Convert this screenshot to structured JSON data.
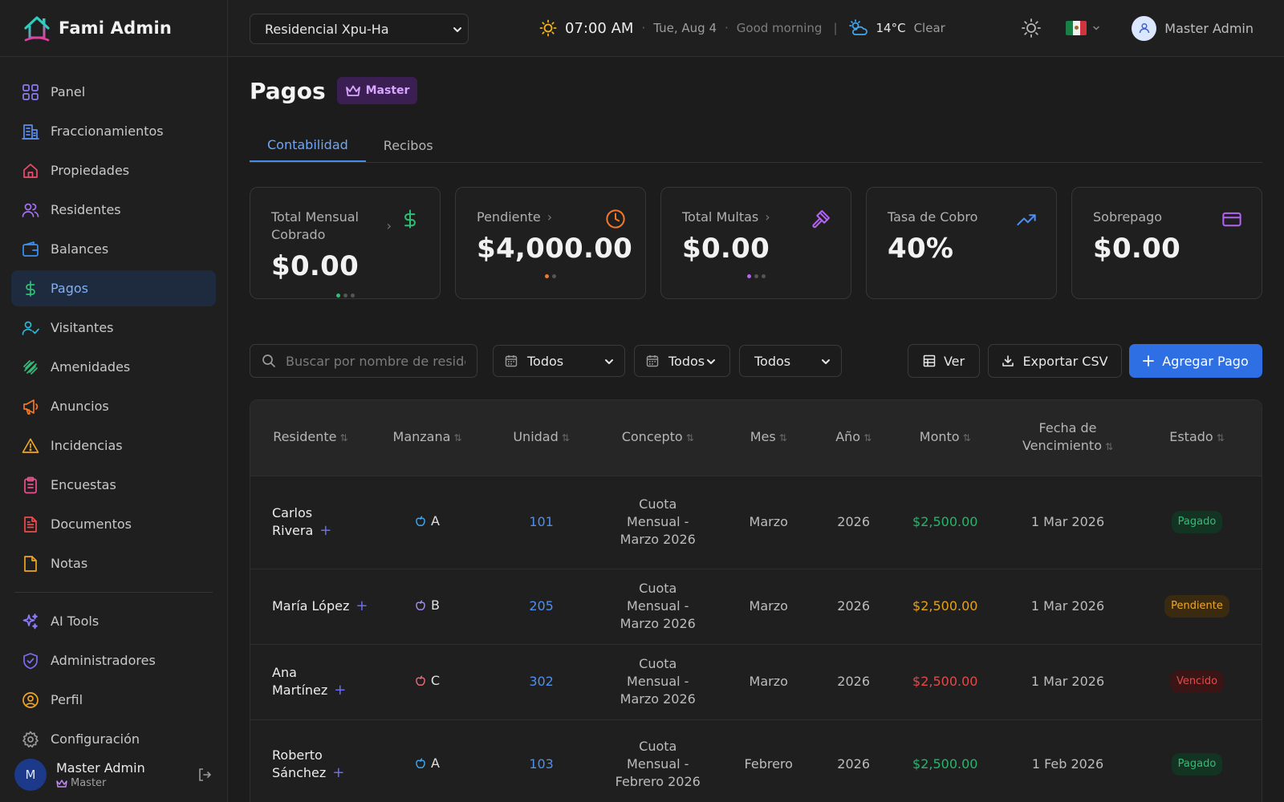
{
  "app": {
    "name": "Fami Admin"
  },
  "sidebar": {
    "items": [
      {
        "label": "Panel",
        "icon": "grid-icon",
        "color": "#8b7cf6"
      },
      {
        "label": "Fraccionamientos",
        "icon": "building-icon",
        "color": "#5b8ff0"
      },
      {
        "label": "Propiedades",
        "icon": "home-icon",
        "color": "#ef4b6b"
      },
      {
        "label": "Residentes",
        "icon": "users-icon",
        "color": "#a472f5"
      },
      {
        "label": "Balances",
        "icon": "wallet-icon",
        "color": "#3f8ef0"
      },
      {
        "label": "Pagos",
        "icon": "dollar-icon",
        "color": "#2fbf74",
        "active": true
      },
      {
        "label": "Visitantes",
        "icon": "user-check-icon",
        "color": "#28b6d8"
      },
      {
        "label": "Amenidades",
        "icon": "dumbbell-icon",
        "color": "#2fbf74"
      },
      {
        "label": "Anuncios",
        "icon": "megaphone-icon",
        "color": "#f07a2a"
      },
      {
        "label": "Incidencias",
        "icon": "warning-icon",
        "color": "#efa521"
      },
      {
        "label": "Encuestas",
        "icon": "clipboard-icon",
        "color": "#ec4f8f"
      },
      {
        "label": "Documentos",
        "icon": "document-icon",
        "color": "#ef4b4b"
      },
      {
        "label": "Notas",
        "icon": "note-icon",
        "color": "#efa521"
      }
    ],
    "bottom_items": [
      {
        "label": "AI Tools",
        "icon": "sparkles-icon",
        "color": "#8b7cf6"
      },
      {
        "label": "Administradores",
        "icon": "shield-icon",
        "color": "#7e6cf6"
      },
      {
        "label": "Perfil",
        "icon": "user-circle-icon",
        "color": "#efa521"
      },
      {
        "label": "Configuración",
        "icon": "gear-icon",
        "color": "#9a9a9a"
      }
    ],
    "user": {
      "initial": "M",
      "name": "Master Admin",
      "role": "Master"
    }
  },
  "topbar": {
    "property": "Residencial Xpu-Ha",
    "time": "07:00 AM",
    "date": "Tue, Aug 4",
    "greeting": "Good morning",
    "separator": "|",
    "temperature": "14°C",
    "weather": "Clear",
    "user_name": "Master Admin"
  },
  "page": {
    "title": "Pagos",
    "badge": "Master",
    "tabs": [
      {
        "label": "Contabilidad",
        "active": true
      },
      {
        "label": "Recibos",
        "active": false
      }
    ]
  },
  "cards": [
    {
      "label": "Total Mensual Cobrado",
      "value": "$0.00",
      "icon": "dollar-icon",
      "icon_color": "#2fbf74",
      "has_arrow": true,
      "dots": 3,
      "active_dot_color": "#2fbf74"
    },
    {
      "label": "Pendiente",
      "value": "$4,000.00",
      "icon": "clock-icon",
      "icon_color": "#f07a2a",
      "has_arrow": true,
      "dots": 2,
      "active_dot_color": "#f07a2a"
    },
    {
      "label": "Total Multas",
      "value": "$0.00",
      "icon": "gavel-icon",
      "icon_color": "#b463f5",
      "has_arrow": true,
      "dots": 3,
      "active_dot_color": "#b463f5"
    },
    {
      "label": "Tasa de Cobro",
      "value": "40%",
      "icon": "trending-up-icon",
      "icon_color": "#4d8ff0",
      "has_arrow": false,
      "dots": 0
    },
    {
      "label": "Sobrepago",
      "value": "$0.00",
      "icon": "credit-card-icon",
      "icon_color": "#b463f5",
      "has_arrow": false,
      "dots": 0
    }
  ],
  "toolbar": {
    "search_placeholder": "Buscar por nombre de residente",
    "filter_month": "Todos",
    "filter_year": "Todos",
    "filter_status": "Todos",
    "view_label": "Ver",
    "export_label": "Exportar CSV",
    "add_label": "Agregar Pago"
  },
  "table": {
    "columns": [
      "Residente",
      "Manzana",
      "Unidad",
      "Concepto",
      "Mes",
      "Año",
      "Monto",
      "Fecha de Vencimiento",
      "Estado"
    ],
    "rows": [
      {
        "resident": "Carlos Rivera",
        "block": "A",
        "block_color": "#3fa9f5",
        "unit": "101",
        "concept": "Cuota Mensual - Marzo 2026",
        "month": "Marzo",
        "year": "2026",
        "amount": "$2,500.00",
        "amount_class": "amt-green",
        "due": "1 Mar 2026",
        "status": "Pagado",
        "status_class": "st-paid"
      },
      {
        "resident": "María López",
        "block": "B",
        "block_color": "#a98cf6",
        "unit": "205",
        "concept": "Cuota Mensual - Marzo 2026",
        "month": "Marzo",
        "year": "2026",
        "amount": "$2,500.00",
        "amount_class": "amt-amber",
        "due": "1 Mar 2026",
        "status": "Pendiente",
        "status_class": "st-pend"
      },
      {
        "resident": "Ana Martínez",
        "block": "C",
        "block_color": "#ef6b7b",
        "unit": "302",
        "concept": "Cuota Mensual - Marzo 2026",
        "month": "Marzo",
        "year": "2026",
        "amount": "$2,500.00",
        "amount_class": "amt-red",
        "due": "1 Mar 2026",
        "status": "Vencido",
        "status_class": "st-over"
      },
      {
        "resident": "Roberto Sánchez",
        "block": "A",
        "block_color": "#3fa9f5",
        "unit": "103",
        "concept": "Cuota Mensual - Febrero 2026",
        "month": "Febrero",
        "year": "2026",
        "amount": "$2,500.00",
        "amount_class": "amt-green",
        "due": "1 Feb 2026",
        "status": "Pagado",
        "status_class": "st-paid"
      }
    ]
  }
}
